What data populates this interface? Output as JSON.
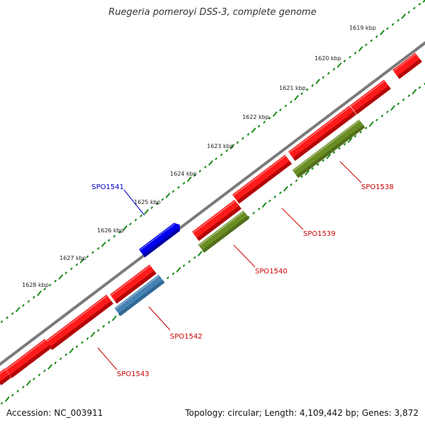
{
  "title": "Ruegeria pomeroyi DSS-3, complete genome",
  "footer": {
    "accession": "Accession: NC_003911",
    "summary": "Topology: circular; Length: 4,109,442 bp; Genes: 3,872"
  },
  "ruler": {
    "labels": [
      "1619 kbp",
      "1620 kbp",
      "1621 kbp",
      "1622 kbp",
      "1623 kbp",
      "1624 kbp",
      "1625 kbp",
      "1626 kbp",
      "1627 kbp",
      "1628 kbp"
    ]
  },
  "genes": [
    {
      "label": "SPO1538",
      "color": "#cc0000"
    },
    {
      "label": "SPO1539",
      "color": "#cc0000"
    },
    {
      "label": "SPO1540",
      "color": "#cc0000"
    },
    {
      "label": "SPO1541",
      "color": "#0000cc"
    },
    {
      "label": "SPO1542",
      "color": "#cc0000"
    },
    {
      "label": "SPO1543",
      "color": "#cc0000"
    }
  ],
  "colors": {
    "backbone": "#7a7a7a",
    "cds_forward": "#ff1a1a",
    "cds_reverse": "#0000ee",
    "rna_ortholog": "#6b8e23",
    "pseudo": "#4682b4",
    "tick_green": "#1a8a1a"
  }
}
